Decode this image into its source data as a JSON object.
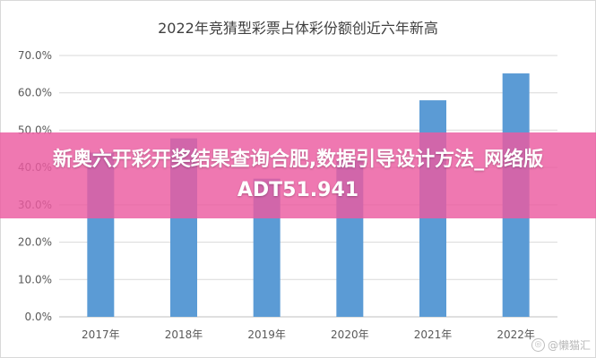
{
  "banner": {
    "text": "新奥六开彩开奖结果查询合肥,数据引导设计方法_网络版ADT51.941"
  },
  "watermark": {
    "text": "@懒猫汇"
  },
  "chart_data": {
    "type": "bar",
    "title": "2022年竞猜型彩票占体彩份额创近六年新高",
    "categories": [
      "2017年",
      "2018年",
      "2019年",
      "2020年",
      "2021年",
      "2022年"
    ],
    "values": [
      0.44,
      0.478,
      0.37,
      0.42,
      0.58,
      0.652
    ],
    "ylim": [
      0,
      0.7
    ],
    "yticks": [
      0.0,
      0.1,
      0.2,
      0.3,
      0.4,
      0.5,
      0.6,
      0.7
    ],
    "ytick_labels": [
      "0.0%",
      "10.0%",
      "20.0%",
      "30.0%",
      "40.0%",
      "50.0%",
      "60.0%",
      "70.0%"
    ],
    "xlabel": "",
    "ylabel": "",
    "grid": true,
    "bar_color": "#5b9bd5",
    "grid_color": "#d9d9d9",
    "axis_text_color": "#595959"
  }
}
